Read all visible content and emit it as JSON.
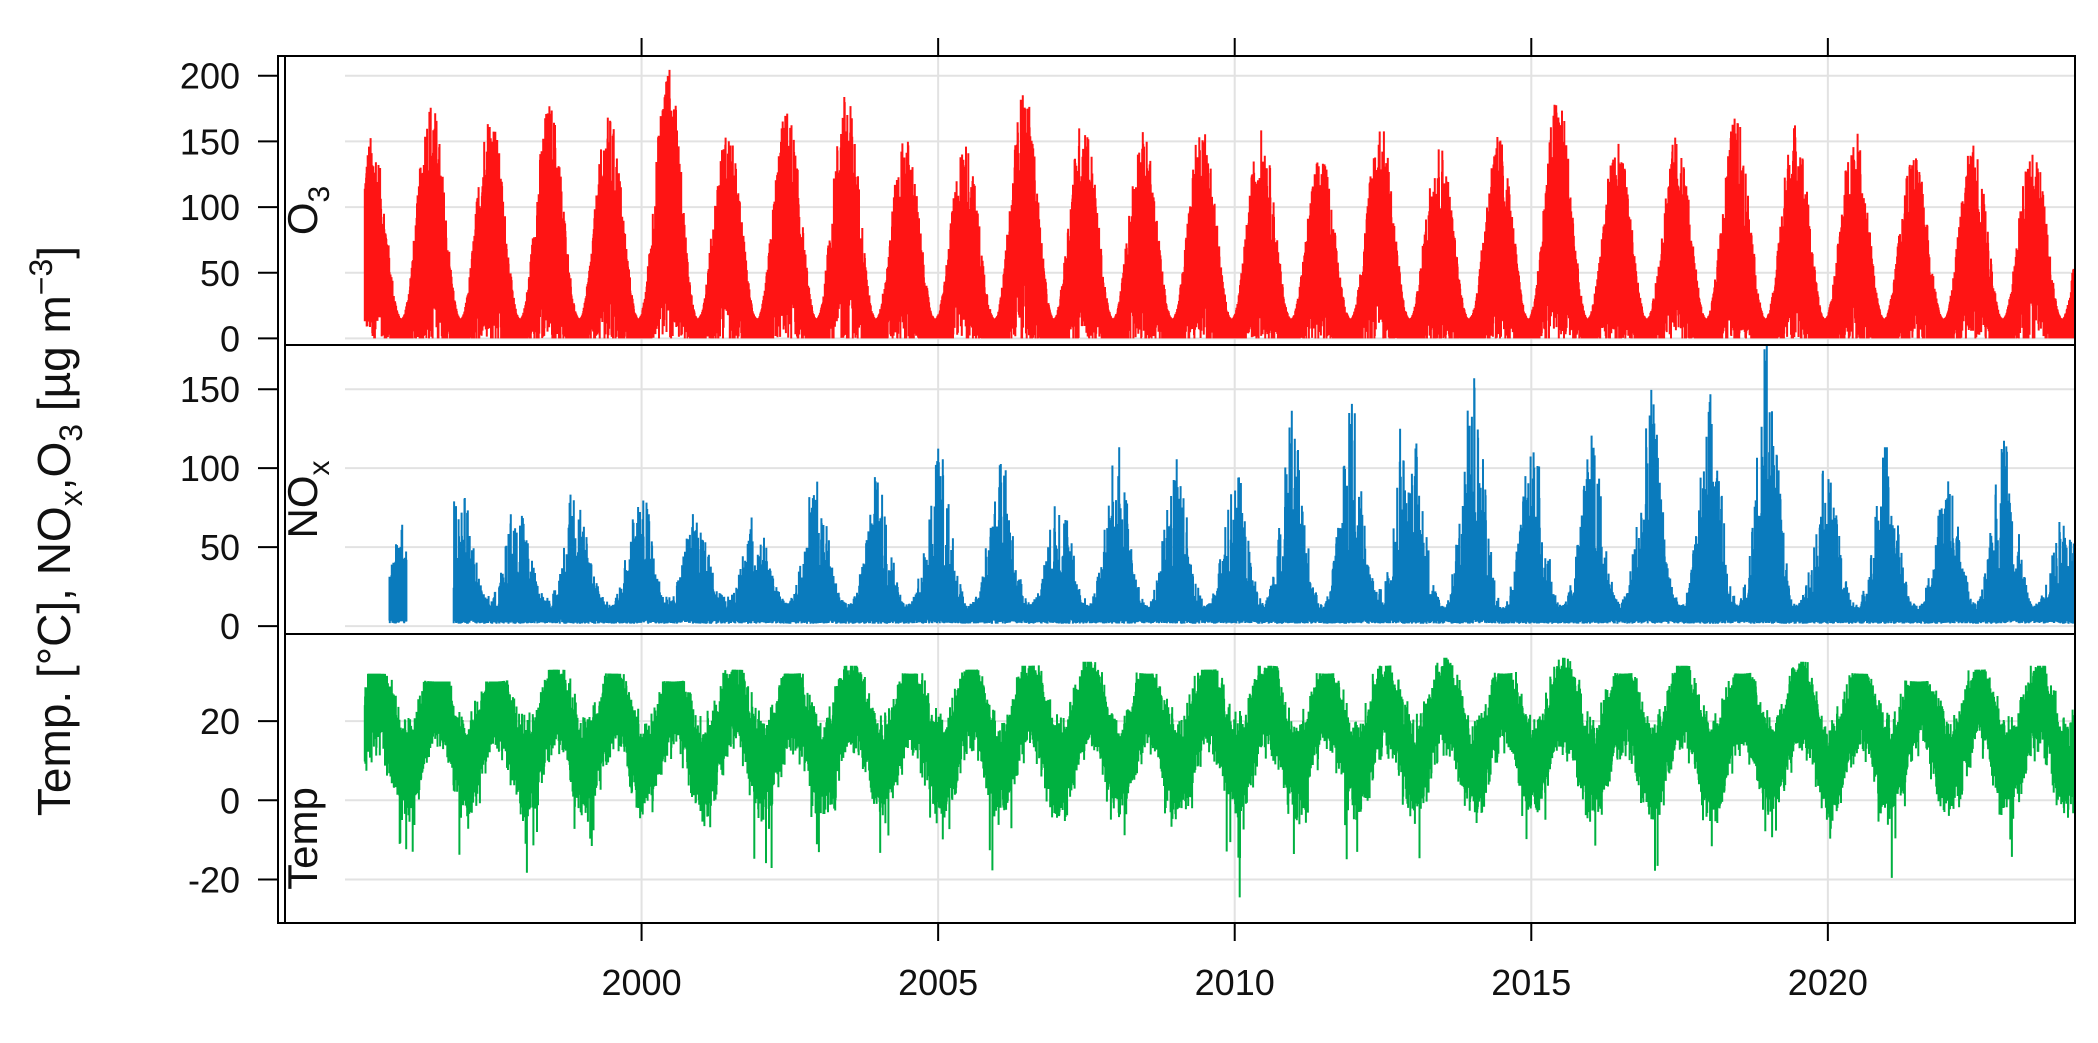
{
  "chart_data": {
    "type": "line",
    "ylabel": "Temp. [°C], NOx,O3 [µg m−3]",
    "ylabel_parts": {
      "temp": "Temp. [°C], NO",
      "x_sub": "x",
      "o3_sep": ",O",
      "three_sub": "3",
      "unit": " [µg m",
      "exp": "−3",
      "close": "]"
    },
    "x_range": [
      "1995-01-01",
      "2024-03-01"
    ],
    "x_ticks": [
      "2000",
      "2005",
      "2010",
      "2015",
      "2020"
    ],
    "grid": true,
    "panels": [
      {
        "name": "O3",
        "strip_main": "O",
        "strip_sub": "3",
        "color": "#ff1414",
        "ylim": [
          -5,
          215
        ],
        "y_ticks": [
          "0",
          "50",
          "100",
          "150",
          "200"
        ],
        "data_start": "1995-05-01",
        "data_end": "2024-03-01",
        "annual_peaks": [
          [
            "1995-06",
            155
          ],
          [
            "1996-06",
            183
          ],
          [
            "1997-06",
            175
          ],
          [
            "1998-06",
            180
          ],
          [
            "1999-06",
            170
          ],
          [
            "2000-06",
            208
          ],
          [
            "2001-06",
            158
          ],
          [
            "2002-06",
            175
          ],
          [
            "2003-06",
            188
          ],
          [
            "2004-06",
            155
          ],
          [
            "2005-06",
            150
          ],
          [
            "2006-06",
            190
          ],
          [
            "2007-06",
            170
          ],
          [
            "2008-06",
            158
          ],
          [
            "2009-06",
            165
          ],
          [
            "2010-06",
            160
          ],
          [
            "2011-06",
            140
          ],
          [
            "2012-06",
            165
          ],
          [
            "2013-06",
            150
          ],
          [
            "2014-06",
            155
          ],
          [
            "2015-07",
            188
          ],
          [
            "2016-06",
            150
          ],
          [
            "2017-06",
            155
          ],
          [
            "2018-06",
            170
          ],
          [
            "2019-06",
            165
          ],
          [
            "2020-06",
            160
          ],
          [
            "2021-06",
            140
          ],
          [
            "2022-06",
            150
          ],
          [
            "2023-06",
            150
          ]
        ],
        "winter_low": 0
      },
      {
        "name": "NOx",
        "strip_main": "NO",
        "strip_sub": "x",
        "color": "#0a7bbd",
        "ylim": [
          -5,
          178
        ],
        "y_ticks": [
          "0",
          "50",
          "100",
          "150"
        ],
        "segments": [
          [
            "1995-10-01",
            "1996-01-15"
          ],
          [
            "1996-11-01",
            "2024-03-01"
          ]
        ],
        "peaks": [
          [
            "1995-11",
            20
          ],
          [
            "1996-01",
            42
          ],
          [
            "1996-11",
            76
          ],
          [
            "1997-10",
            65
          ],
          [
            "1998-10",
            78
          ],
          [
            "1999-12",
            70
          ],
          [
            "2000-10",
            55
          ],
          [
            "2001-10",
            52
          ],
          [
            "2002-11",
            75
          ],
          [
            "2003-12",
            68
          ],
          [
            "2004-12",
            62
          ],
          [
            "2005-01",
            95
          ],
          [
            "2006-02",
            88
          ],
          [
            "2007-02",
            65
          ],
          [
            "2008-01",
            95
          ],
          [
            "2009-01",
            88
          ],
          [
            "2010-01",
            75
          ],
          [
            "2010-12",
            112
          ],
          [
            "2011-12",
            128
          ],
          [
            "2012-10",
            125
          ],
          [
            "2013-01",
            95
          ],
          [
            "2014-01",
            157
          ],
          [
            "2015-01",
            110
          ],
          [
            "2016-01",
            100
          ],
          [
            "2016-12",
            103
          ],
          [
            "2017-01",
            128
          ],
          [
            "2018-01",
            128
          ],
          [
            "2018-12",
            168
          ],
          [
            "2019-12",
            78
          ],
          [
            "2020-12",
            90
          ],
          [
            "2022-01",
            75
          ],
          [
            "2022-12",
            110
          ],
          [
            "2023-12",
            40
          ]
        ],
        "summer_base": 5
      },
      {
        "name": "Temp",
        "strip_main": "Temp",
        "strip_sub": "",
        "color": "#00b140",
        "ylim": [
          -31,
          42
        ],
        "y_ticks": [
          "-20",
          "0",
          "20"
        ],
        "data_start": "1995-05-01",
        "data_end": "2024-03-01",
        "summer_peaks": [
          [
            "1995-07",
            32
          ],
          [
            "1996-07",
            30
          ],
          [
            "1997-07",
            30
          ],
          [
            "1998-07",
            33
          ],
          [
            "1999-07",
            32
          ],
          [
            "2000-07",
            30
          ],
          [
            "2001-07",
            33
          ],
          [
            "2002-07",
            32
          ],
          [
            "2003-07",
            34
          ],
          [
            "2004-07",
            32
          ],
          [
            "2005-07",
            33
          ],
          [
            "2006-07",
            34
          ],
          [
            "2007-07",
            35
          ],
          [
            "2008-07",
            32
          ],
          [
            "2009-07",
            33
          ],
          [
            "2010-07",
            34
          ],
          [
            "2011-07",
            32
          ],
          [
            "2012-07",
            34
          ],
          [
            "2013-07",
            36
          ],
          [
            "2014-07",
            32
          ],
          [
            "2015-07",
            36
          ],
          [
            "2016-07",
            32
          ],
          [
            "2017-07",
            34
          ],
          [
            "2018-07",
            32
          ],
          [
            "2019-07",
            35
          ],
          [
            "2020-07",
            32
          ],
          [
            "2021-07",
            30
          ],
          [
            "2022-07",
            33
          ],
          [
            "2023-07",
            34
          ]
        ],
        "winter_lows": [
          [
            "1996-01",
            -21
          ],
          [
            "1997-01",
            -20
          ],
          [
            "1998-01",
            -21
          ],
          [
            "1999-01",
            -15
          ],
          [
            "2000-01",
            -10
          ],
          [
            "2001-01",
            -18
          ],
          [
            "2002-01",
            -25
          ],
          [
            "2003-01",
            -23
          ],
          [
            "2004-01",
            -15
          ],
          [
            "2005-02",
            -15
          ],
          [
            "2006-01",
            -26
          ],
          [
            "2007-01",
            -10
          ],
          [
            "2008-01",
            -12
          ],
          [
            "2009-01",
            -18
          ],
          [
            "2010-01",
            -25
          ],
          [
            "2011-01",
            -22
          ],
          [
            "2012-02",
            -25
          ],
          [
            "2013-01",
            -18
          ],
          [
            "2014-01",
            -12
          ],
          [
            "2015-02",
            -15
          ],
          [
            "2016-01",
            -14
          ],
          [
            "2017-01",
            -20
          ],
          [
            "2018-02",
            -12
          ],
          [
            "2019-01",
            -12
          ],
          [
            "2020-01",
            -10
          ],
          [
            "2021-02",
            -20
          ],
          [
            "2022-01",
            -12
          ],
          [
            "2023-01",
            -16
          ],
          [
            "2024-01",
            -8
          ]
        ]
      }
    ]
  }
}
